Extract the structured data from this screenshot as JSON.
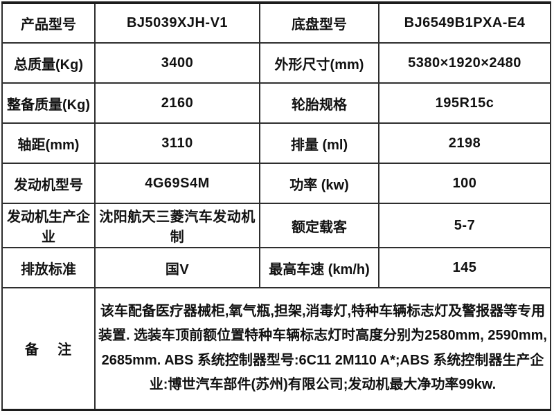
{
  "table": {
    "rows": [
      {
        "label1": "产品型号",
        "value1": "BJ5039XJH-V1",
        "label2": "底盘型号",
        "value2": "BJ6549B1PXA-E4"
      },
      {
        "label1": "总质量(Kg)",
        "value1": "3400",
        "label2": "外形尺寸(mm)",
        "value2": "5380×1920×2480"
      },
      {
        "label1": "整备质量(Kg)",
        "value1": "2160",
        "label2": "轮胎规格",
        "value2": "195R15c"
      },
      {
        "label1": "轴距(mm)",
        "value1": "3110",
        "label2": "排量 (ml)",
        "value2": "2198"
      },
      {
        "label1": "发动机型号",
        "value1": "4G69S4M",
        "label2": "功率 (kw)",
        "value2": "100"
      },
      {
        "label1": "发动机生产企业",
        "value1": "沈阳航天三菱汽车发动机制",
        "label2": "额定载客",
        "value2": "5-7"
      },
      {
        "label1": "排放标准",
        "value1": "国V",
        "label2": "最高车速 (km/h)",
        "value2": "145"
      }
    ],
    "remark": {
      "label": "备    注",
      "text": "该车配备医疗器械柜,氧气瓶,担架,消毒灯,特种车辆标志灯及警报器等专用装置. 选装车顶前额位置特种车辆标志灯时高度分别为2580mm, 2590mm, 2685mm. ABS 系统控制器型号:6C11 2M110 A*;ABS 系统控制器生产企业:博世汽车部件(苏州)有限公司;发动机最大净功率99kw."
    }
  }
}
